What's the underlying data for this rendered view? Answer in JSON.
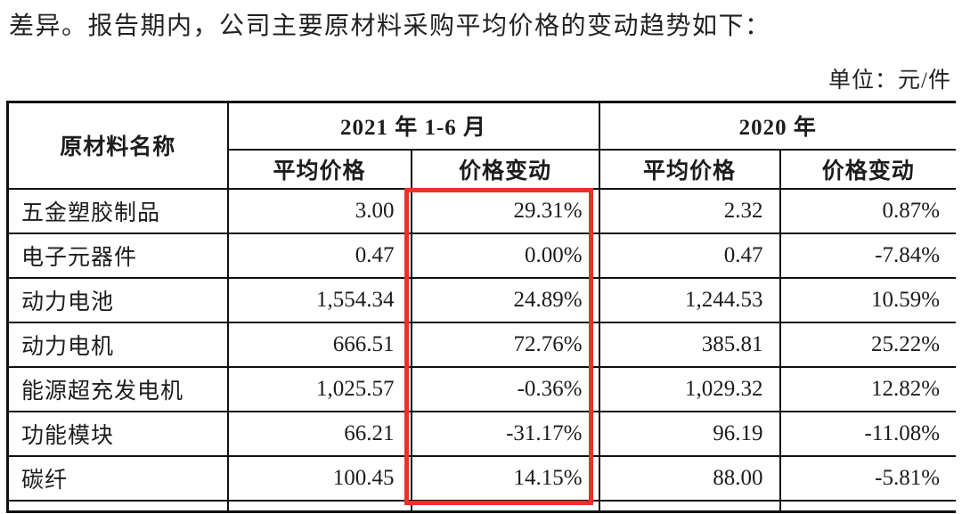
{
  "page": {
    "intro_text": "差异。报告期内，公司主要原材料采购平均价格的变动趋势如下：",
    "unit_label": "单位：元/件"
  },
  "table": {
    "header": {
      "material_col": "原材料名称",
      "groups": [
        {
          "label": "2021 年 1-6 月",
          "sub": [
            "平均价格",
            "价格变动"
          ]
        },
        {
          "label": "2020 年",
          "sub": [
            "平均价格",
            "价格变动"
          ]
        }
      ]
    },
    "rows": [
      {
        "name": "五金塑胶制品",
        "avg_2021": "3.00",
        "chg_2021": "29.31%",
        "avg_2020": "2.32",
        "chg_2020": "0.87%"
      },
      {
        "name": "电子元器件",
        "avg_2021": "0.47",
        "chg_2021": "0.00%",
        "avg_2020": "0.47",
        "chg_2020": "-7.84%"
      },
      {
        "name": "动力电池",
        "avg_2021": "1,554.34",
        "chg_2021": "24.89%",
        "avg_2020": "1,244.53",
        "chg_2020": "10.59%"
      },
      {
        "name": "动力电机",
        "avg_2021": "666.51",
        "chg_2021": "72.76%",
        "avg_2020": "385.81",
        "chg_2020": "25.22%"
      },
      {
        "name": "能源超充发电机",
        "avg_2021": "1,025.57",
        "chg_2021": "-0.36%",
        "avg_2020": "1,029.32",
        "chg_2020": "12.82%"
      },
      {
        "name": "功能模块",
        "avg_2021": "66.21",
        "chg_2021": "-31.17%",
        "avg_2020": "96.19",
        "chg_2020": "-11.08%"
      },
      {
        "name": "碳纤",
        "avg_2021": "100.45",
        "chg_2021": "14.15%",
        "avg_2020": "88.00",
        "chg_2020": "-5.81%"
      }
    ]
  },
  "annotation": {
    "highlight_color": "#e63327",
    "highlighted_column": "2021 年 1-6 月 价格变动"
  }
}
